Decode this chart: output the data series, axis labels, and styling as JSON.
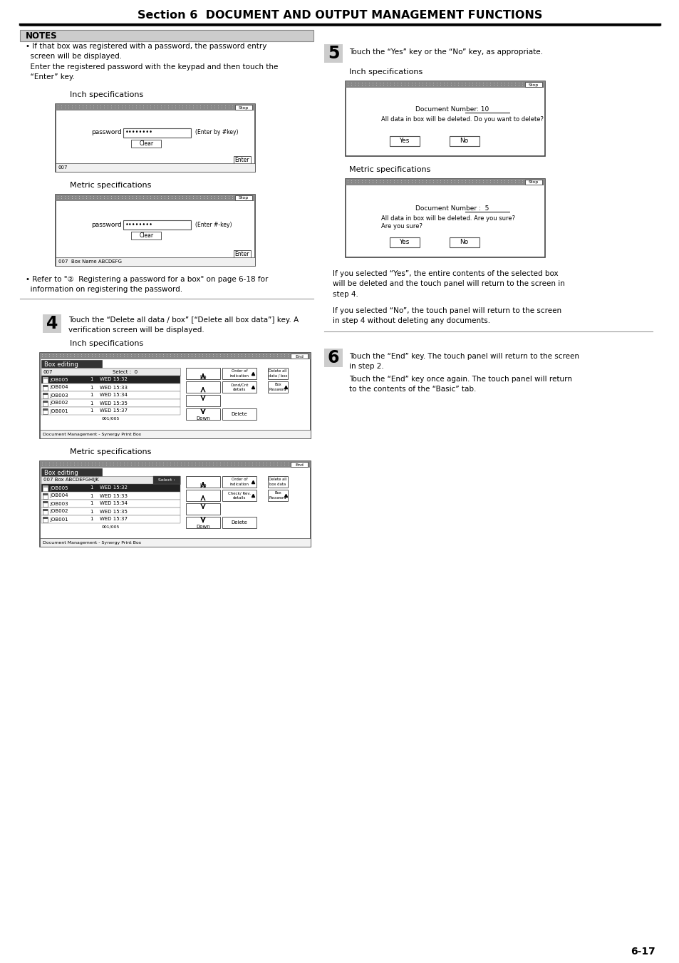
{
  "title": "Section 6  DOCUMENT AND OUTPUT MANAGEMENT FUNCTIONS",
  "page_number": "6-17",
  "bg_color": "#ffffff",
  "notes_title": "NOTES",
  "inch_spec_label": "Inch specifications",
  "metric_spec_label": "Metric specifications",
  "note_bullet": "• If that box was registered with a password, the password entry\n  screen will be displayed.\n  Enter the registered password with the keypad and then touch the\n  “Enter” key.",
  "refer_text": "• Refer to \"②  Registering a password for a box\" on page 6-18 for\n  information on registering the password.",
  "step4_num": "4",
  "step4_text": "Touch the “Delete all data / box” [“Delete all box data”] key. A\nverification screen will be displayed.",
  "step5_num": "5",
  "step5_text": "Touch the “Yes” key or the “No” key, as appropriate.",
  "step6_num": "6",
  "step6_text1": "Touch the “End” key. The touch panel will return to the screen\nin step 2.",
  "step6_text2": "Touch the “End” key once again. The touch panel will return\nto the contents of the “Basic” tab.",
  "yes_no_text1": "If you selected “Yes”, the entire contents of the selected box\nwill be deleted and the touch panel will return to the screen in\nstep 4.",
  "yes_no_text2": "If you selected “No”, the touch panel will return to the screen\nin step 4 without deleting any documents.",
  "jobs": [
    [
      "JOB005",
      "1",
      "WED 15:32",
      true
    ],
    [
      "JOB004",
      "1",
      "WED 15:33",
      false
    ],
    [
      "JOB003",
      "1",
      "WED 15:34",
      false
    ],
    [
      "JOB002",
      "1",
      "WED 15:35",
      false
    ],
    [
      "JOB001",
      "1",
      "WED 15:37",
      false
    ]
  ]
}
